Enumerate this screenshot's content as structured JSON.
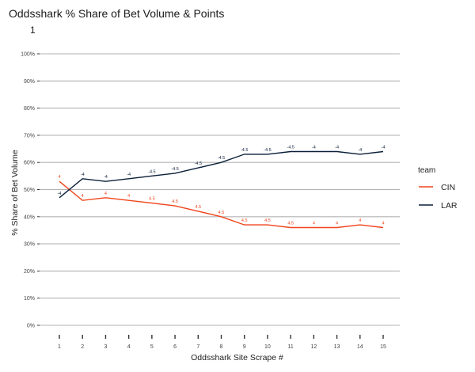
{
  "chart_data": {
    "type": "line",
    "title": "Oddsshark % Share of Bet Volume & Points",
    "subtitle": "1",
    "xlabel": "Oddsshark Site Scrape #",
    "ylabel": "% Share of Bet Volume",
    "x": [
      1,
      2,
      3,
      4,
      5,
      6,
      7,
      8,
      9,
      10,
      11,
      12,
      13,
      14,
      15
    ],
    "x_tick_labels": [
      "1",
      "2",
      "3",
      "4",
      "5",
      "6",
      "7",
      "8",
      "9",
      "10",
      "11",
      "12",
      "13",
      "14",
      "15"
    ],
    "ylim": [
      0,
      100
    ],
    "y_ticks": [
      0,
      10,
      20,
      30,
      40,
      50,
      60,
      70,
      80,
      90,
      100
    ],
    "y_tick_labels": [
      "0%",
      "10%",
      "20%",
      "30%",
      "40%",
      "50%",
      "60%",
      "70%",
      "80%",
      "90%",
      "100%"
    ],
    "grid": true,
    "legend": {
      "title": "team",
      "placement": "right",
      "entries": [
        "CIN",
        "LAR"
      ]
    },
    "series": [
      {
        "name": "CIN",
        "color": "#f0441a",
        "values": [
          53,
          46,
          47,
          46,
          45,
          44,
          42,
          40,
          37,
          37,
          36,
          36,
          36,
          37,
          36
        ],
        "point_labels": [
          "4",
          "4",
          "4",
          "4",
          "4.5",
          "4.5",
          "4.5",
          "4.5",
          "4.5",
          "4.5",
          "4.5",
          "4",
          "4",
          "4",
          "4"
        ]
      },
      {
        "name": "LAR",
        "color": "#0b1f3a",
        "values": [
          47,
          54,
          53,
          54,
          55,
          56,
          58,
          60,
          63,
          63,
          64,
          64,
          64,
          63,
          64
        ],
        "point_labels": [
          "-4",
          "-4",
          "-4",
          "-4",
          "-4.5",
          "-4.5",
          "-4.5",
          "-4.5",
          "-4.5",
          "-4.5",
          "-4.5",
          "-4",
          "-4",
          "-4",
          "-4"
        ]
      }
    ]
  }
}
